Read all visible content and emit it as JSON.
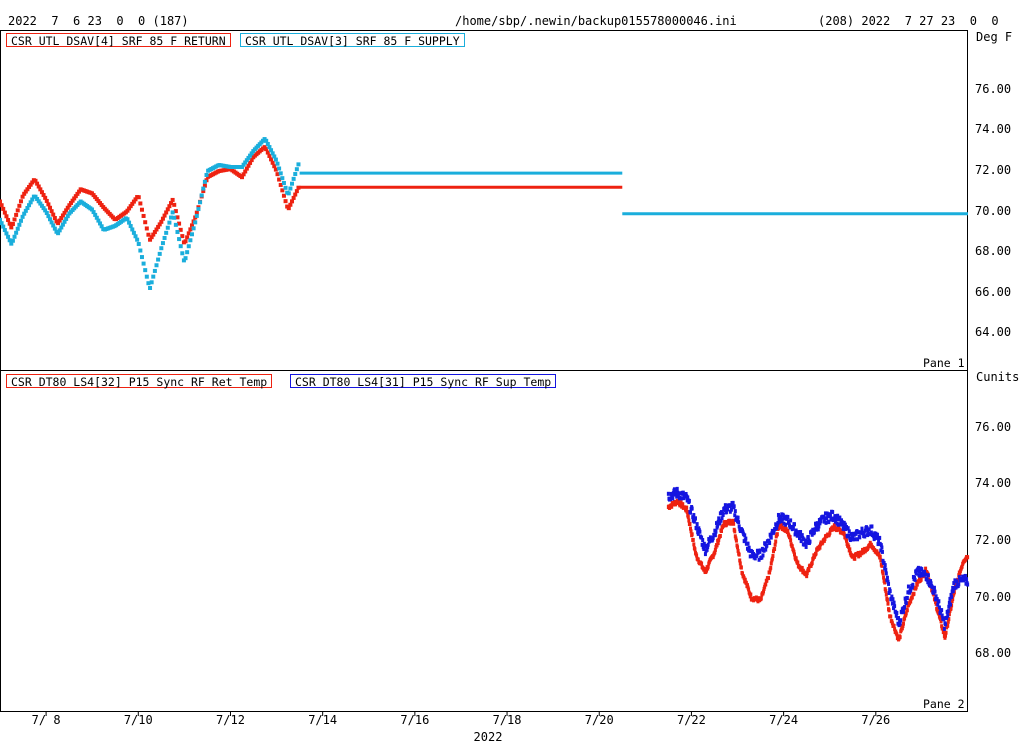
{
  "header": {
    "left": "2022  7  6 23  0  0 (187)",
    "center": "/home/sbp/.newin/backup015578000046.ini",
    "right": "(208) 2022  7 27 23  0  0"
  },
  "chart_data": [
    {
      "type": "scatter",
      "pane_label": "Pane 1",
      "unit": "Deg F",
      "y_ticks": [
        "76.00",
        "74.00",
        "72.00",
        "70.00",
        "68.00",
        "66.00",
        "64.00"
      ],
      "y_tick_values": [
        76,
        74,
        72,
        70,
        68,
        66,
        64
      ],
      "ylim": [
        62.2,
        78.9
      ],
      "xlim": [
        7.0,
        28.0
      ],
      "series": [
        {
          "name": "CSR UTL DSAV[4] SRF 85 F RETURN",
          "color": "#ee2211",
          "x": [
            7.0,
            7.25,
            7.5,
            7.75,
            8.0,
            8.25,
            8.5,
            8.75,
            9.0,
            9.25,
            9.5,
            9.75,
            10.0,
            10.25,
            10.5,
            10.75,
            11.0,
            11.25,
            11.5,
            11.75,
            12.0,
            12.25,
            12.5,
            12.75,
            13.0,
            13.25,
            13.5
          ],
          "y": [
            70.5,
            69.2,
            70.8,
            71.6,
            70.6,
            69.4,
            70.3,
            71.1,
            70.9,
            70.2,
            69.6,
            70.0,
            70.8,
            68.6,
            69.5,
            70.6,
            68.4,
            69.8,
            71.7,
            72.0,
            72.1,
            71.7,
            72.7,
            73.2,
            72.0,
            70.1,
            71.3
          ]
        },
        {
          "name": "CSR UTL DSAV[3] SRF 85 F SUPPLY",
          "color": "#1aaedc",
          "x": [
            7.0,
            7.25,
            7.5,
            7.75,
            8.0,
            8.25,
            8.5,
            8.75,
            9.0,
            9.25,
            9.5,
            9.75,
            10.0,
            10.25,
            10.5,
            10.75,
            11.0,
            11.25,
            11.5,
            11.75,
            12.0,
            12.25,
            12.5,
            12.75,
            13.0,
            13.25,
            13.5
          ],
          "y": [
            69.6,
            68.4,
            69.8,
            70.8,
            70.0,
            68.9,
            69.9,
            70.5,
            70.1,
            69.1,
            69.3,
            69.7,
            68.5,
            66.2,
            68.2,
            70.0,
            67.5,
            69.6,
            72.0,
            72.3,
            72.2,
            72.2,
            73.0,
            73.6,
            72.5,
            70.8,
            72.5
          ]
        }
      ],
      "flat_lines": [
        {
          "series": "CSR UTL DSAV[3] SRF 85 F SUPPLY",
          "color": "#1aaedc",
          "x": [
            13.5,
            20.5
          ],
          "y": 71.9
        },
        {
          "series": "CSR UTL DSAV[4] SRF 85 F RETURN",
          "color": "#ee2211",
          "x": [
            13.5,
            20.5
          ],
          "y": 71.2
        },
        {
          "series": "CSR UTL DSAV[3] SRF 85 F SUPPLY",
          "color": "#1aaedc",
          "x": [
            20.5,
            28.0
          ],
          "y": 69.9
        }
      ]
    },
    {
      "type": "scatter",
      "pane_label": "Pane 2",
      "unit": "Cunits",
      "y_ticks": [
        "76.00",
        "74.00",
        "72.00",
        "70.00",
        "68.00"
      ],
      "y_tick_values": [
        76,
        74,
        72,
        70,
        68
      ],
      "ylim": [
        66.0,
        78.0
      ],
      "xlim": [
        7.0,
        28.0
      ],
      "series": [
        {
          "name": "CSR DT80 LS4[32] P15 Sync RF Ret Temp",
          "color": "#ee2211",
          "x": [
            21.5,
            21.7,
            21.9,
            22.1,
            22.3,
            22.5,
            22.7,
            22.9,
            23.1,
            23.3,
            23.5,
            23.7,
            23.9,
            24.1,
            24.3,
            24.5,
            24.7,
            24.9,
            25.1,
            25.3,
            25.5,
            25.7,
            25.9,
            26.1,
            26.3,
            26.5,
            26.7,
            26.9,
            27.1,
            27.3,
            27.5,
            27.7
          ],
          "y": [
            73.2,
            73.4,
            73.1,
            71.5,
            70.9,
            71.6,
            72.6,
            72.7,
            70.9,
            70.0,
            69.9,
            70.9,
            72.6,
            72.3,
            71.2,
            70.8,
            71.6,
            72.1,
            72.5,
            72.3,
            71.4,
            71.6,
            71.9,
            71.4,
            69.4,
            68.5,
            69.7,
            70.5,
            71.0,
            69.8,
            68.6,
            70.2
          ],
          "tail_x": [
            27.9,
            28.0
          ],
          "tail_y": [
            71.3,
            71.5
          ]
        },
        {
          "name": "CSR DT80 LS4[31] P15 Sync RF Sup Temp",
          "color": "#1515e0",
          "x": [
            21.5,
            21.7,
            21.9,
            22.1,
            22.3,
            22.5,
            22.7,
            22.9,
            23.1,
            23.3,
            23.5,
            23.7,
            23.9,
            24.1,
            24.3,
            24.5,
            24.7,
            24.9,
            25.1,
            25.3,
            25.5,
            25.7,
            25.9,
            26.1,
            26.3,
            26.5,
            26.7,
            26.9,
            27.1,
            27.3,
            27.5,
            27.7
          ],
          "y": [
            73.6,
            73.7,
            73.5,
            72.6,
            71.7,
            72.3,
            73.1,
            73.2,
            72.3,
            71.5,
            71.5,
            72.1,
            72.8,
            72.7,
            72.3,
            71.9,
            72.5,
            72.8,
            72.9,
            72.5,
            72.1,
            72.3,
            72.4,
            71.9,
            70.2,
            69.1,
            70.2,
            70.9,
            70.8,
            70.1,
            69.0,
            70.5
          ],
          "tail_x": [
            27.9,
            28.0
          ],
          "tail_y": [
            70.6,
            70.6
          ]
        }
      ]
    }
  ],
  "x_ticks": [
    "7/ 8",
    "7/10",
    "7/12",
    "7/14",
    "7/16",
    "7/18",
    "7/20",
    "7/22",
    "7/24",
    "7/26"
  ],
  "x_tick_values": [
    8,
    10,
    12,
    14,
    16,
    18,
    20,
    22,
    24,
    26
  ],
  "x_year": "2022"
}
